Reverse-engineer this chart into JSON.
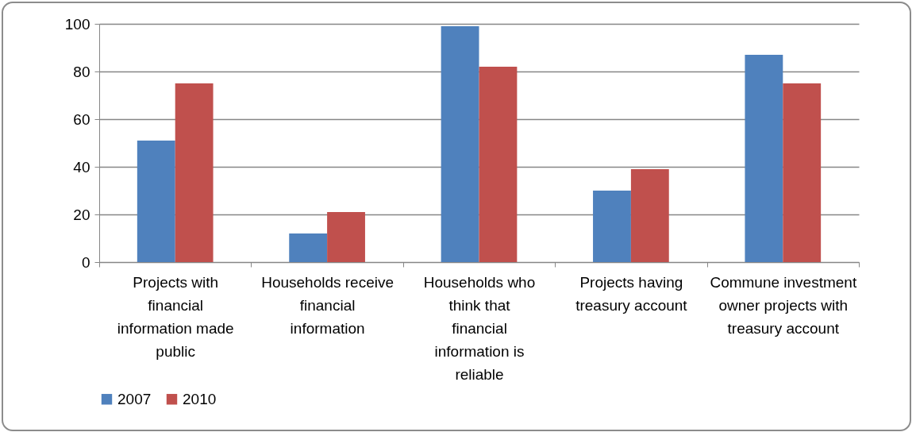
{
  "chart_data": {
    "type": "bar",
    "categories": [
      "Projects with financial information made public",
      "Households receive financial information",
      "Households who think that financial information is reliable",
      "Projects having treasury account",
      "Commune investment owner projects with treasury account"
    ],
    "series": [
      {
        "name": "2007",
        "color": "#4f81bd",
        "values": [
          51,
          12,
          99,
          30,
          87
        ]
      },
      {
        "name": "2010",
        "color": "#c0504d",
        "values": [
          75,
          21,
          82,
          39,
          75
        ]
      }
    ],
    "ylim": [
      0,
      100
    ],
    "yticks": [
      0,
      20,
      40,
      60,
      80,
      100
    ],
    "grid": "y",
    "legend": "bottom"
  }
}
